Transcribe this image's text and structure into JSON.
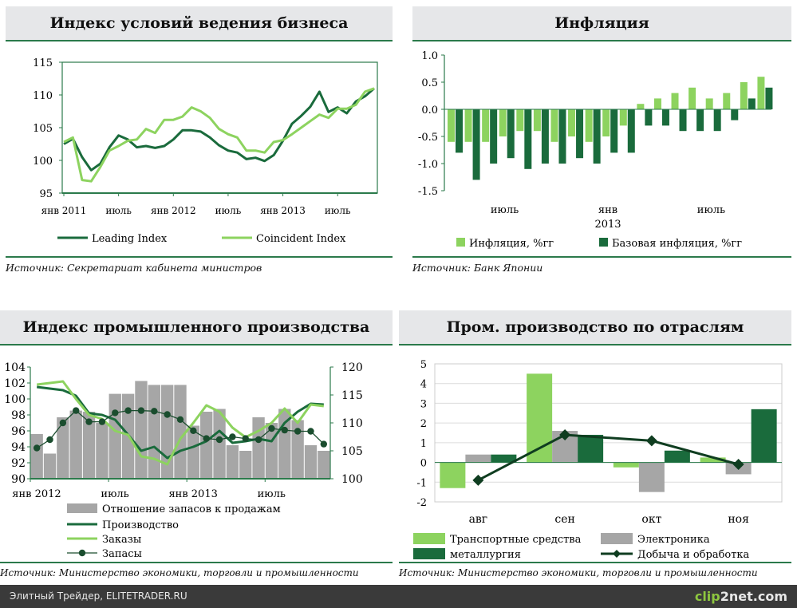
{
  "panels": {
    "business": {
      "title": "Индекс условий ведения бизнеса",
      "source": "Источник: Секретариат кабинета министров"
    },
    "inflation": {
      "title": "Инфляция",
      "source": "Источник: Банк Японии"
    },
    "industrial": {
      "title": "Индекс промышленного производства",
      "source": "Источник: Министерство экономики, торговли и промышленности"
    },
    "sectors": {
      "title": "Пром. производство по отраслям",
      "source": "Источник: Министерство экономики, торговли и промышленности"
    }
  },
  "footer": {
    "text": "Элитный Трейдер, ELITETRADER.RU",
    "logo_a": "clip",
    "logo_b": "2",
    "logo_c": "net.com"
  },
  "chart_data": [
    {
      "id": "business",
      "type": "line",
      "title": "Индекс условий ведения бизнеса",
      "ylim": [
        95,
        115
      ],
      "yticks": [
        "95",
        "100",
        "105",
        "110",
        "115"
      ],
      "xticks": [
        {
          "i": 0,
          "label": "янв 2011"
        },
        {
          "i": 6,
          "label": "июль"
        },
        {
          "i": 12,
          "label": "янв 2012"
        },
        {
          "i": 18,
          "label": "июль"
        },
        {
          "i": 24,
          "label": "янв 2013"
        },
        {
          "i": 30,
          "label": "июль"
        }
      ],
      "colors": {
        "Leading Index": "#1a6b3c",
        "Coincident Index": "#8dd35f"
      },
      "series": [
        {
          "name": "Leading Index",
          "values": [
            102.5,
            103.3,
            100.5,
            98.5,
            99.5,
            102,
            103.8,
            103.2,
            102,
            102.2,
            101.9,
            102.2,
            103.2,
            104.6,
            104.6,
            104.4,
            103.5,
            102.3,
            101.5,
            101.2,
            100.2,
            100.4,
            99.9,
            100.8,
            103,
            105.6,
            106.8,
            108.2,
            110.5,
            107.4,
            108.1,
            107.2,
            109,
            109.8,
            111
          ]
        },
        {
          "name": "Coincident Index",
          "values": [
            102.8,
            103.5,
            97,
            96.8,
            99,
            101.5,
            102.2,
            103,
            103.2,
            104.8,
            104.2,
            106.2,
            106.2,
            106.7,
            108.1,
            107.5,
            106.5,
            104.8,
            104,
            103.5,
            101.5,
            101.5,
            101.2,
            102.8,
            103.1,
            104,
            105,
            106,
            107,
            106.5,
            107.9,
            107.9,
            108.5,
            110.5,
            111
          ]
        }
      ]
    },
    {
      "id": "inflation",
      "type": "bar",
      "title": "Инфляция",
      "ylim": [
        -1.5,
        1.0
      ],
      "yticks": [
        "-1.5",
        "-1.0",
        "-0.5",
        "0.0",
        "0.5",
        "1.0"
      ],
      "xticks": [
        {
          "i": 3.5,
          "label": "июль"
        },
        {
          "i": 9.5,
          "label": "янв"
        },
        {
          "i": 15.5,
          "label": "июль"
        }
      ],
      "xsublabel": {
        "i": 9.5,
        "label": "2013"
      },
      "colors": {
        "Инфляция, %гг": "#8dd35f",
        "Базовая инфляция, %гг": "#1a6b3c"
      },
      "series": [
        {
          "name": "Инфляция, %гг",
          "values": [
            -0.6,
            -0.6,
            -0.6,
            -0.5,
            -0.4,
            -0.4,
            -0.6,
            -0.5,
            -0.6,
            -0.5,
            -0.3,
            0.1,
            0.2,
            0.3,
            0.4,
            0.2,
            0.3,
            0.5,
            0.6
          ]
        },
        {
          "name": "Базовая инфляция, %гг",
          "values": [
            -0.8,
            -1.3,
            -1.0,
            -0.9,
            -1.1,
            -1.0,
            -1.0,
            -0.9,
            -1.0,
            -0.8,
            -0.8,
            -0.3,
            -0.3,
            -0.4,
            -0.4,
            -0.4,
            -0.2,
            0.2,
            0.4
          ]
        }
      ]
    },
    {
      "id": "industrial",
      "type": "bar+line",
      "title": "Индекс промышленного производства",
      "ylim_left": [
        90,
        104
      ],
      "ylim_right": [
        100,
        120
      ],
      "yticks_left": [
        "90",
        "92",
        "94",
        "96",
        "98",
        "100",
        "102",
        "104"
      ],
      "yticks_right": [
        "100",
        "105",
        "110",
        "115",
        "120"
      ],
      "xticks": [
        {
          "i": 0,
          "label": "янв 2012"
        },
        {
          "i": 6,
          "label": "июль"
        },
        {
          "i": 12,
          "label": "янв 2013"
        },
        {
          "i": 18,
          "label": "июль"
        }
      ],
      "colors": {
        "Отношение запасов к продажам": "#a6a6a6",
        "Производство": "#1a6b3c",
        "Заказы": "#8dd35f",
        "Запасы": "#1a4d2e"
      },
      "series": [
        {
          "name": "Отношение запасов к продажам",
          "axis": "right",
          "values": [
            108,
            104.5,
            111,
            112.2,
            112,
            110,
            115.2,
            115.2,
            117.5,
            116.8,
            116.8,
            116.8,
            109.5,
            112,
            112.5,
            106,
            105,
            111,
            110,
            112.5,
            110.5,
            106,
            105
          ]
        },
        {
          "name": "Производство",
          "axis": "left",
          "values": [
            101.5,
            101.3,
            101.1,
            100.4,
            98.2,
            98,
            97.4,
            95.5,
            93.5,
            94,
            92.6,
            93.5,
            94,
            94.7,
            96,
            94.5,
            94.7,
            95,
            94.7,
            97,
            98.4,
            99.4,
            99.3
          ]
        },
        {
          "name": "Заказы",
          "axis": "left",
          "values": [
            101.8,
            102,
            102.2,
            100,
            98,
            97.5,
            96,
            95.5,
            92.8,
            92.5,
            91.8,
            95,
            97,
            99.2,
            98.4,
            96.4,
            95.2,
            96,
            97,
            98.8,
            97,
            99.3,
            99.1
          ]
        },
        {
          "name": "Запасы",
          "axis": "right",
          "values": [
            105.5,
            107,
            110,
            112.2,
            110.2,
            110.2,
            111.8,
            112.2,
            112.2,
            112.1,
            111.5,
            110.6,
            108.6,
            107.2,
            107,
            107.5,
            107.2,
            107,
            109,
            108.7,
            108.5,
            108.5,
            106.2
          ]
        }
      ]
    },
    {
      "id": "sectors",
      "type": "bar+line",
      "title": "Пром. производство по отраслям",
      "ylim": [
        -2,
        5
      ],
      "yticks": [
        "-2",
        "-1",
        "0",
        "1",
        "2",
        "3",
        "4",
        "5"
      ],
      "categories": [
        "авг",
        "сен",
        "окт",
        "ноя"
      ],
      "colors": {
        "Транспортные средства": "#8dd35f",
        "Электроника": "#a6a6a6",
        "металлургия": "#1a6b3c",
        "Добыча и обработка": "#0f3d20"
      },
      "series": [
        {
          "name": "Транспортные средства",
          "kind": "bar",
          "values": [
            -1.3,
            4.5,
            -0.25,
            0.25
          ]
        },
        {
          "name": "Электроника",
          "kind": "bar",
          "values": [
            0.4,
            1.6,
            -1.5,
            -0.6
          ]
        },
        {
          "name": "металлургия",
          "kind": "bar",
          "values": [
            0.4,
            1.4,
            0.6,
            2.7
          ]
        },
        {
          "name": "Добыча и обработка",
          "kind": "line",
          "values": [
            -0.9,
            1.4,
            1.1,
            -0.1
          ]
        }
      ]
    }
  ]
}
